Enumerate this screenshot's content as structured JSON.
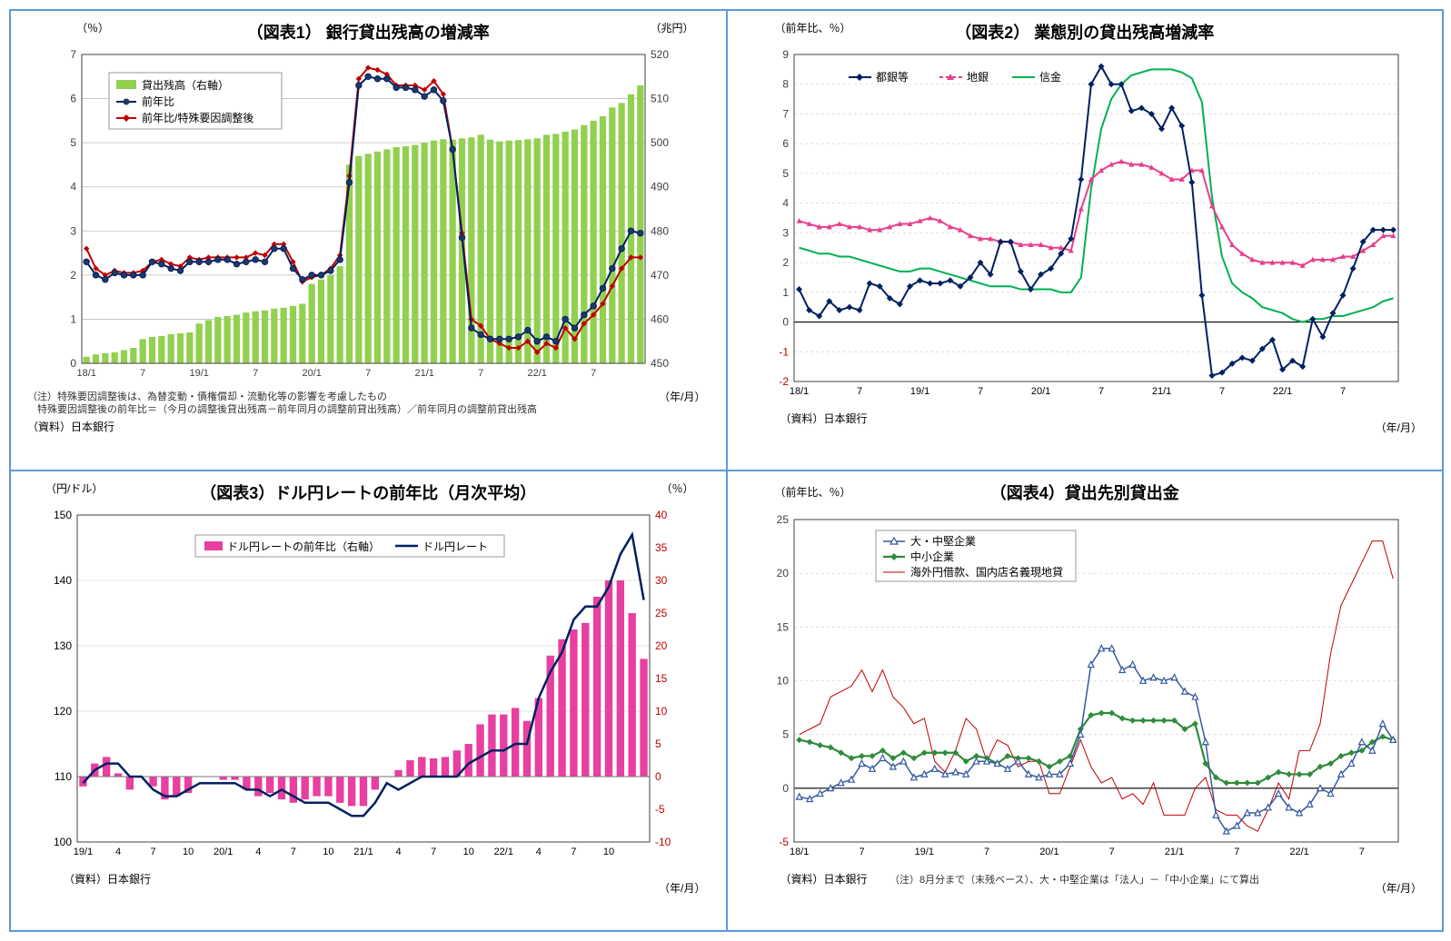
{
  "c1": {
    "title": "（図表1） 銀行貸出残高の増減率",
    "ylabel_l": "（％）",
    "ylabel_r": "（兆円）",
    "xlabel": "（年/月）",
    "notes1": "（注）特殊要因調整後は、為替変動・債権償却・流動化等の影響を考慮したもの",
    "notes2": "　特殊要因調整後の前年比＝（今月の調整後貸出残高－前年同月の調整前貸出残高）／前年同月の調整前貸出残高",
    "source": "（資料）日本銀行",
    "legend": {
      "bars": "貸出残高（右軸）",
      "line1": "前年比",
      "line2": "前年比/特殊要因調整後"
    },
    "ylim_l": [
      0,
      7
    ],
    "yticks_l": [
      0,
      1,
      2,
      3,
      4,
      5,
      6,
      7
    ],
    "ylim_r": [
      450,
      520
    ],
    "yticks_r": [
      450,
      460,
      470,
      480,
      490,
      500,
      510,
      520
    ],
    "xticks": [
      "18/1",
      "7",
      "19/1",
      "7",
      "20/1",
      "7",
      "21/1",
      "7",
      "22/1",
      "7"
    ],
    "colors": {
      "bar": "#92d050",
      "line1": "#002060",
      "line2": "#c00000",
      "grid": "#bfbfbf",
      "axis": "#404040",
      "marker1_fill": "#203864",
      "marker2_fill": "#c00000"
    },
    "bars": [
      451.5,
      452,
      452.3,
      452.5,
      453,
      453.5,
      455.5,
      456,
      456.2,
      456.6,
      456.8,
      457,
      459,
      459.8,
      460.5,
      460.7,
      461,
      461.5,
      461.8,
      462,
      462.4,
      462.6,
      463,
      463.5,
      468,
      469,
      470,
      472,
      495,
      497,
      497.5,
      498,
      498.5,
      499,
      499.2,
      499.5,
      500,
      500.5,
      500.8,
      500.7,
      501,
      501.2,
      501.8,
      500.7,
      500.3,
      500.5,
      500.6,
      500.8,
      501,
      501.8,
      502,
      502.5,
      503,
      504,
      505,
      506,
      508,
      509,
      511,
      513
    ],
    "line1": [
      2.3,
      2.0,
      1.9,
      2.05,
      2.0,
      2.0,
      2.0,
      2.3,
      2.25,
      2.15,
      2.1,
      2.3,
      2.3,
      2.3,
      2.35,
      2.35,
      2.25,
      2.3,
      2.35,
      2.3,
      2.6,
      2.6,
      2.15,
      1.9,
      2.0,
      2.0,
      2.1,
      2.35,
      4.1,
      6.3,
      6.5,
      6.45,
      6.45,
      6.25,
      6.25,
      6.2,
      6.05,
      6.2,
      5.95,
      4.85,
      2.85,
      0.8,
      0.65,
      0.55,
      0.55,
      0.55,
      0.6,
      0.75,
      0.5,
      0.6,
      0.5,
      1.0,
      0.8,
      1.1,
      1.3,
      1.7,
      2.15,
      2.6,
      3.0,
      2.95
    ],
    "line2": [
      2.6,
      2.15,
      2.0,
      2.1,
      2.05,
      2.05,
      2.1,
      2.3,
      2.35,
      2.25,
      2.2,
      2.4,
      2.35,
      2.4,
      2.4,
      2.4,
      2.4,
      2.4,
      2.5,
      2.45,
      2.7,
      2.7,
      2.3,
      1.85,
      1.95,
      2.0,
      2.15,
      2.45,
      4.25,
      6.45,
      6.7,
      6.65,
      6.55,
      6.3,
      6.3,
      6.3,
      6.2,
      6.4,
      6.1,
      4.85,
      2.95,
      1.0,
      0.85,
      0.55,
      0.45,
      0.35,
      0.35,
      0.5,
      0.25,
      0.45,
      0.35,
      0.8,
      0.55,
      0.9,
      1.1,
      1.35,
      1.75,
      2.15,
      2.4,
      2.4
    ]
  },
  "c2": {
    "title": "（図表2） 業態別の貸出残高増減率",
    "ylabel_l": "（前年比、％）",
    "xlabel": "（年/月）",
    "source": "（資料）日本銀行",
    "legend": {
      "s1": "都銀等",
      "s2": "地銀",
      "s3": "信金"
    },
    "ylim": [
      -2,
      9
    ],
    "yticks": [
      -2,
      -1,
      0,
      1,
      2,
      3,
      4,
      5,
      6,
      7,
      8,
      9
    ],
    "xticks": [
      "18/1",
      "7",
      "19/1",
      "7",
      "20/1",
      "7",
      "21/1",
      "7",
      "22/1",
      "7"
    ],
    "colors": {
      "s1": "#002060",
      "s2": "#e83e8c",
      "s3": "#00b050",
      "zero": "#000000",
      "neg": "#c00000",
      "grid": "#d9d9d9",
      "axis": "#404040"
    },
    "s1": [
      1.1,
      0.4,
      0.2,
      0.7,
      0.4,
      0.5,
      0.4,
      1.3,
      1.2,
      0.8,
      0.6,
      1.2,
      1.4,
      1.3,
      1.3,
      1.4,
      1.2,
      1.5,
      2.0,
      1.6,
      2.7,
      2.7,
      1.7,
      1.1,
      1.6,
      1.8,
      2.3,
      2.8,
      4.8,
      8.0,
      8.6,
      8.0,
      8.0,
      7.1,
      7.2,
      7.0,
      6.5,
      7.2,
      6.6,
      4.7,
      0.9,
      -1.8,
      -1.7,
      -1.4,
      -1.2,
      -1.3,
      -0.9,
      -0.6,
      -1.6,
      -1.3,
      -1.5,
      0.1,
      -0.5,
      0.3,
      0.9,
      1.8,
      2.7,
      3.1,
      3.1,
      3.1
    ],
    "s2": [
      3.4,
      3.3,
      3.2,
      3.2,
      3.3,
      3.2,
      3.2,
      3.1,
      3.1,
      3.2,
      3.3,
      3.3,
      3.4,
      3.5,
      3.4,
      3.2,
      3.1,
      2.9,
      2.8,
      2.8,
      2.7,
      2.7,
      2.6,
      2.6,
      2.6,
      2.5,
      2.5,
      2.4,
      3.8,
      4.8,
      5.1,
      5.3,
      5.4,
      5.3,
      5.3,
      5.2,
      5.0,
      4.8,
      4.8,
      5.1,
      5.1,
      3.9,
      3.2,
      2.6,
      2.3,
      2.1,
      2.0,
      2.0,
      2.0,
      2.0,
      1.9,
      2.1,
      2.1,
      2.1,
      2.2,
      2.2,
      2.4,
      2.6,
      2.9,
      2.9
    ],
    "s3": [
      2.5,
      2.4,
      2.3,
      2.3,
      2.2,
      2.2,
      2.1,
      2.0,
      1.9,
      1.8,
      1.7,
      1.7,
      1.8,
      1.8,
      1.7,
      1.6,
      1.5,
      1.4,
      1.3,
      1.2,
      1.2,
      1.2,
      1.1,
      1.1,
      1.1,
      1.1,
      1.0,
      1.0,
      1.5,
      4.5,
      6.5,
      7.5,
      8.0,
      8.3,
      8.4,
      8.5,
      8.5,
      8.5,
      8.4,
      8.2,
      7.4,
      4.2,
      2.2,
      1.3,
      1.0,
      0.8,
      0.5,
      0.4,
      0.3,
      0.1,
      0.0,
      0.1,
      0.1,
      0.2,
      0.2,
      0.3,
      0.4,
      0.5,
      0.7,
      0.8
    ]
  },
  "c3": {
    "title": "（図表3）ドル円レートの前年比（月次平均）",
    "ylabel_l": "（円/ドル）",
    "ylabel_r": "（％）",
    "xlabel": "（年/月）",
    "source": "（資料）日本銀行",
    "legend": {
      "bars": "ドル円レートの前年比（右軸）",
      "line": "ドル円レート"
    },
    "ylim_l": [
      100,
      150
    ],
    "yticks_l": [
      100,
      110,
      120,
      130,
      140,
      150
    ],
    "ylim_r": [
      -10,
      40
    ],
    "yticks_r": [
      -10,
      -5,
      0,
      5,
      10,
      15,
      20,
      25,
      30,
      35,
      40
    ],
    "xticks": [
      "19/1",
      "4",
      "7",
      "10",
      "20/1",
      "4",
      "7",
      "10",
      "21/1",
      "4",
      "7",
      "10",
      "22/1",
      "4",
      "7",
      "10"
    ],
    "colors": {
      "bar": "#e83fa0",
      "line": "#002060",
      "grid": "#d9d9d9",
      "axis": "#404040",
      "axis_r": "#c00000"
    },
    "bars": [
      -1.5,
      2.0,
      3.0,
      0.5,
      -2.0,
      0.0,
      -1.5,
      -3.5,
      -3.0,
      -2.5,
      0.0,
      0.0,
      -0.5,
      -0.5,
      -2.0,
      -3.0,
      -2.5,
      -3.5,
      -4.0,
      -3.5,
      -3.0,
      -3.0,
      -4.0,
      -4.5,
      -4.5,
      -2.0,
      0.0,
      1.0,
      2.5,
      3.0,
      2.8,
      3.0,
      4.0,
      5.0,
      8.0,
      9.5,
      9.5,
      10.5,
      8.5,
      12.0,
      18.5,
      21.0,
      22.5,
      23.5,
      27.5,
      30.0,
      30.0,
      25.0,
      18.0
    ],
    "line": [
      109,
      111,
      112,
      112,
      110,
      110,
      108,
      107,
      107,
      108,
      109,
      109,
      109,
      109,
      108,
      108,
      107,
      108,
      107,
      106,
      106,
      106,
      105,
      104,
      104,
      106,
      109,
      108,
      109,
      110,
      110,
      110,
      110,
      112,
      113,
      114,
      114,
      115,
      115,
      122,
      126,
      129,
      134,
      136,
      136,
      139,
      144,
      147,
      137
    ]
  },
  "c4": {
    "title": "（図表4）貸出先別貸出金",
    "ylabel_l": "（前年比、％）",
    "xlabel": "（年/月）",
    "source": "（資料）日本銀行",
    "note_bottom": "（注）8月分まで（末残ベース）、大・中堅企業は「法人」－「中小企業」にて算出",
    "legend": {
      "s1": "大・中堅企業",
      "s2": "中小企業",
      "s3": "海外円借款、国内店名義現地貸"
    },
    "ylim": [
      -5,
      25
    ],
    "yticks": [
      -5,
      0,
      5,
      10,
      15,
      20,
      25
    ],
    "xticks": [
      "18/1",
      "7",
      "19/1",
      "7",
      "20/1",
      "7",
      "21/1",
      "7",
      "22/1",
      "7"
    ],
    "colors": {
      "s1": "#3459a0",
      "s2": "#2f8b3b",
      "s3": "#c00000",
      "grid": "#d9d9d9",
      "axis": "#404040"
    },
    "s1": [
      -0.8,
      -1.0,
      -0.5,
      0.0,
      0.5,
      0.8,
      2.3,
      1.8,
      2.8,
      2.0,
      2.5,
      1.0,
      1.3,
      1.8,
      1.3,
      1.5,
      1.3,
      2.5,
      2.5,
      2.3,
      1.8,
      2.5,
      1.3,
      1.0,
      1.3,
      1.3,
      2.3,
      5.0,
      11.5,
      13.0,
      13.0,
      11.0,
      11.5,
      10.0,
      10.3,
      10.0,
      10.3,
      9.0,
      8.5,
      4.3,
      -2.5,
      -4.0,
      -3.5,
      -2.3,
      -2.3,
      -1.8,
      -0.5,
      -1.8,
      -2.3,
      -1.5,
      0.0,
      -0.5,
      1.3,
      2.3,
      4.3,
      3.5,
      6.0,
      4.5
    ],
    "s2": [
      4.5,
      4.3,
      4.0,
      3.8,
      3.3,
      2.8,
      3.0,
      3.0,
      3.5,
      2.8,
      3.3,
      2.8,
      3.3,
      3.3,
      3.3,
      3.3,
      2.5,
      3.0,
      2.8,
      2.3,
      3.0,
      2.8,
      2.8,
      2.5,
      2.0,
      2.5,
      3.0,
      5.5,
      6.8,
      7.0,
      7.0,
      6.5,
      6.3,
      6.3,
      6.3,
      6.3,
      6.3,
      5.5,
      6.0,
      2.3,
      1.0,
      0.5,
      0.5,
      0.5,
      0.5,
      1.0,
      1.5,
      1.3,
      1.3,
      1.3,
      2.0,
      2.3,
      3.0,
      3.3,
      3.5,
      4.3,
      4.8,
      4.5
    ],
    "s3": [
      5.0,
      5.5,
      6.0,
      8.5,
      9.0,
      9.5,
      11.0,
      9.0,
      11.0,
      8.5,
      7.5,
      6.0,
      6.5,
      2.5,
      1.5,
      3.5,
      6.5,
      5.5,
      2.5,
      4.5,
      4.0,
      2.0,
      2.5,
      2.5,
      -0.5,
      -0.5,
      2.0,
      4.5,
      2.0,
      0.5,
      1.0,
      -1.0,
      -0.5,
      -1.5,
      0.5,
      -2.5,
      -2.5,
      -2.5,
      0.0,
      1.0,
      -2.0,
      -2.5,
      -2.5,
      -3.5,
      -4.0,
      -2.0,
      0.5,
      -1.0,
      3.5,
      3.5,
      6.0,
      12.5,
      17.0,
      19.0,
      21.0,
      23.0,
      23.0,
      19.5
    ]
  }
}
